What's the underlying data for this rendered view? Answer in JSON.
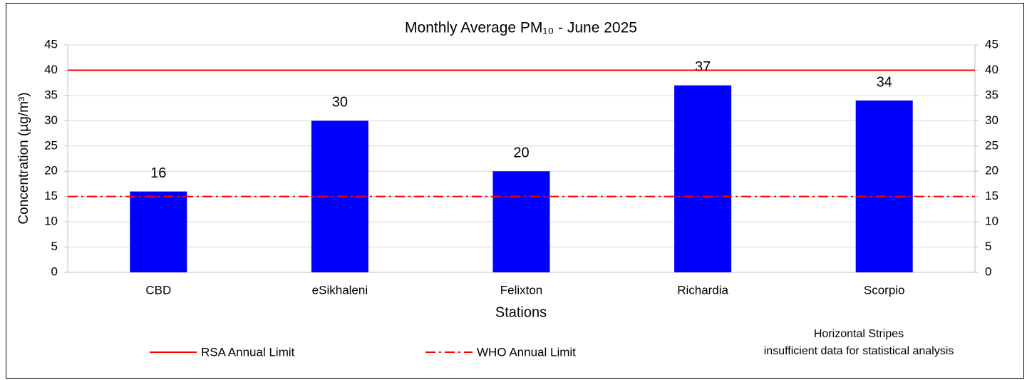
{
  "chart_data": {
    "type": "bar",
    "title": "Monthly Average PM₁₀ - June 2025",
    "ylabel": "Concentration (µg/m³)",
    "xlabel": "Stations",
    "categories": [
      "CBD",
      "eSikhaleni",
      "Felixton",
      "Richardia",
      "Scorpio"
    ],
    "values": [
      16,
      30,
      20,
      37,
      34
    ],
    "color": "#0000ff",
    "ylim": [
      0,
      45
    ],
    "yticks": [
      0,
      5,
      10,
      15,
      20,
      25,
      30,
      35,
      40,
      45
    ],
    "y2lim": [
      0,
      45
    ],
    "y2ticks": [
      0,
      5,
      10,
      15,
      20,
      25,
      30,
      35,
      40,
      45
    ],
    "grid": true,
    "reference_lines": [
      {
        "name": "RSA Annual Limit",
        "value": 40,
        "color": "#ff0000",
        "style": "solid"
      },
      {
        "name": "WHO Annual Limit",
        "value": 15,
        "color": "#ff0000",
        "style": "dashdot"
      }
    ],
    "annotations": [
      "Horizontal Stripes",
      "insufficient data for statistical analysis"
    ]
  }
}
